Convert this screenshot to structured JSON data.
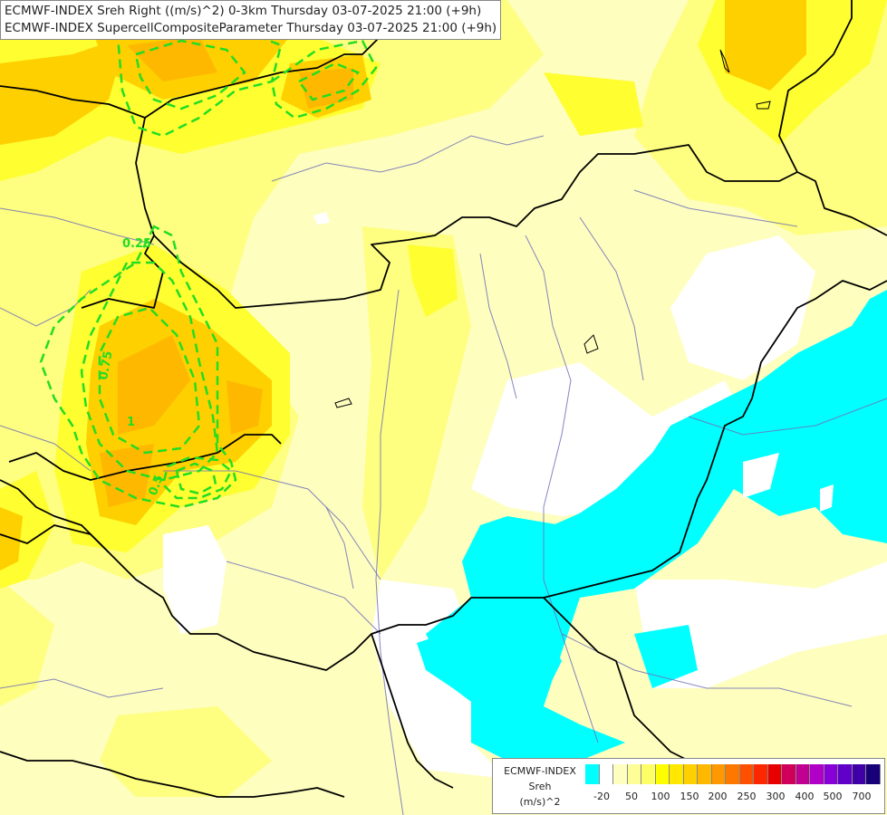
{
  "header": {
    "line1": "ECMWF-INDEX Sreh Right ((m/s)^2) 0-3km Thursday 03-07-2025 21:00 (+9h)",
    "line2": "ECMWF-INDEX SupercellCompositeParameter Thursday 03-07-2025 21:00 (+9h)"
  },
  "contour_labels": [
    "0.25",
    "0.75",
    "1",
    "0.5"
  ],
  "legend": {
    "title_lines": [
      "ECMWF-INDEX",
      "Sreh",
      "(m/s)^2"
    ],
    "ticks": [
      "-20",
      "50",
      "100",
      "150",
      "200",
      "250",
      "300",
      "400",
      "500",
      "700"
    ],
    "colors": [
      "#00ffff",
      "#ffffff",
      "#fefebf",
      "#fefe99",
      "#fefe66",
      "#fefe00",
      "#fee800",
      "#fed000",
      "#feb800",
      "#fe9800",
      "#fe7800",
      "#fe5000",
      "#fe2800",
      "#e80000",
      "#d0005a",
      "#c00090",
      "#b000c8",
      "#8800d8",
      "#6000c8",
      "#4000a8",
      "#180078"
    ]
  },
  "colors": {
    "background": "#fefebf",
    "cyan_field": "#00ffff",
    "yellow_field": "#fefe66",
    "gold_field": "#fed000",
    "orange_field": "#feb800",
    "scp_contour": "#22dd22",
    "border": "#000000",
    "river": "#6a6ab0"
  }
}
